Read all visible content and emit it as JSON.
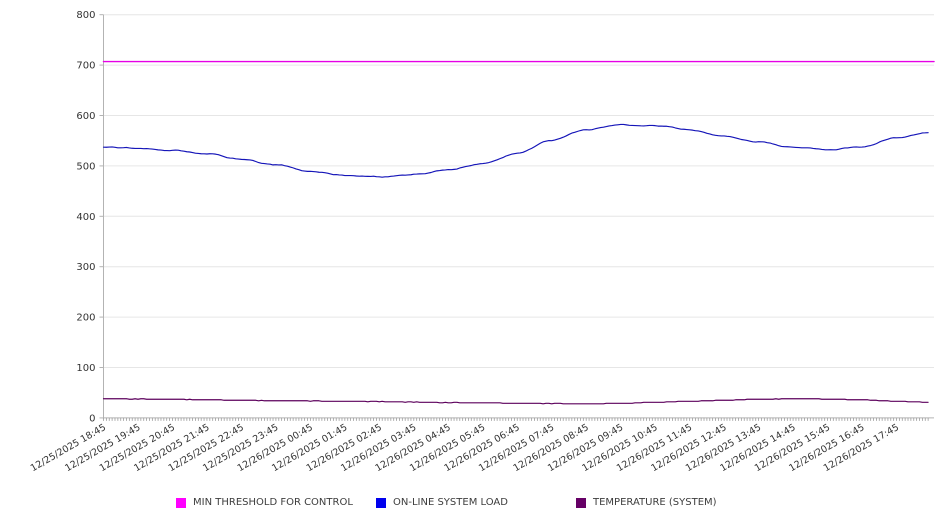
{
  "chart_data": {
    "type": "line",
    "title": "",
    "xlabel": "",
    "ylabel": "",
    "ylim": [
      0,
      800
    ],
    "y_tick_step": 100,
    "y_tick_labels": [
      "0",
      "100",
      "200",
      "300",
      "400",
      "500",
      "600",
      "700",
      "800"
    ],
    "grid": "horizontal-only",
    "legend_position": "bottom",
    "points_per_hour": 12,
    "x_labels": [
      "12/25/2025 18:45",
      "12/25/2025 19:45",
      "12/25/2025 20:45",
      "12/25/2025 21:45",
      "12/25/2025 22:45",
      "12/25/2025 23:45",
      "12/26/2025 00:45",
      "12/26/2025 01:45",
      "12/26/2025 02:45",
      "12/26/2025 03:45",
      "12/26/2025 04:45",
      "12/26/2025 05:45",
      "12/26/2025 06:45",
      "12/26/2025 07:45",
      "12/26/2025 08:45",
      "12/26/2025 09:45",
      "12/26/2025 10:45",
      "12/26/2025 11:45",
      "12/26/2025 12:45",
      "12/26/2025 13:45",
      "12/26/2025 14:45",
      "12/26/2025 15:45",
      "12/26/2025 16:45",
      "12/26/2025 17:45"
    ],
    "series": [
      {
        "key": "min-threshold-line",
        "name": "MIN THRESHOLD FOR CONTROL",
        "color": "#e600e6",
        "swatch": "#ff00ff",
        "style": "constant",
        "value": 707
      },
      {
        "key": "system-load-line",
        "name": "ON-LINE SYSTEM LOAD",
        "color": "#1414b8",
        "swatch": "#0000ee",
        "style": "smooth",
        "jitter": 1.1,
        "hourly_values": [
          537,
          535,
          531,
          524,
          513,
          502,
          489,
          481,
          478,
          483,
          492,
          505,
          525,
          551,
          572,
          582,
          580,
          572,
          559,
          548,
          537,
          532,
          538,
          556,
          566
        ]
      },
      {
        "key": "temperature-line",
        "name": "TEMPERATURE (SYSTEM)",
        "color": "#5c005c",
        "swatch": "#660066",
        "style": "stepped",
        "jitter": 0.4,
        "hourly_values": [
          38,
          37.5,
          37,
          36,
          35,
          34,
          33.5,
          33,
          32.5,
          31.5,
          30.5,
          30,
          29,
          28.5,
          28,
          29,
          31,
          33,
          35,
          37,
          38,
          37.5,
          36,
          33,
          31
        ]
      }
    ],
    "colors": {
      "grid": "#e6e6e6",
      "axis": "#b3b3b3",
      "minor_tick": "#9c9c9c",
      "tick_label": "#333333",
      "background": "#ffffff"
    }
  }
}
